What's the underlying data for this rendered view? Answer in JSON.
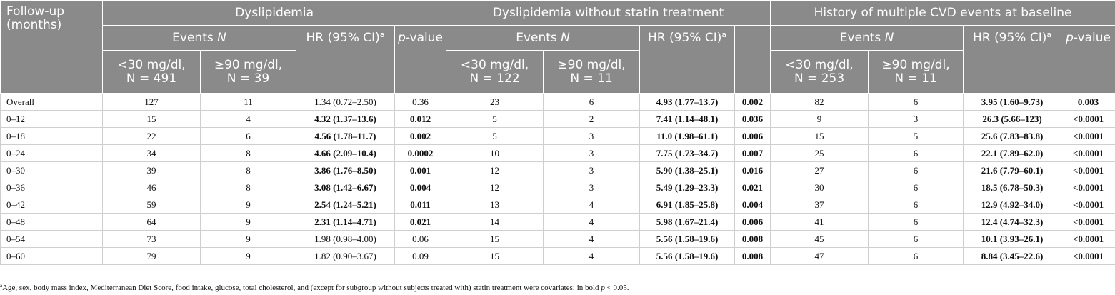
{
  "header": {
    "followup": "Follow-up (months)",
    "groups": [
      "Dyslipidemia",
      "Dyslipidemia without statin treatment",
      "History of multiple CVD events at baseline"
    ],
    "events_label": "Events ",
    "events_n": "N",
    "hr_label": "HR (95% CI)",
    "hr_sup": "a",
    "pvalue_p": "p",
    "pvalue_rest": "-value",
    "sub": {
      "g1": [
        "<30 mg/dl,",
        "N = 491",
        "≥90 mg/dl,",
        "N = 39"
      ],
      "g2": [
        "<30 mg/dl,",
        "N = 122",
        "≥90 mg/dl,",
        "N = 11"
      ],
      "g3": [
        "<30 mg/dl,",
        "N = 253",
        "≥90 mg/dl,",
        "N = 11"
      ]
    }
  },
  "rows": [
    {
      "label": "Overall",
      "c": [
        "127",
        "11",
        "1.34 (0.72–2.50)",
        "0.36",
        "23",
        "6",
        "4.93 (1.77–13.7)",
        "0.002",
        "82",
        "6",
        "3.95 (1.60–9.73)",
        "0.003"
      ],
      "bold": [
        false,
        false,
        false,
        false,
        false,
        false,
        true,
        true,
        false,
        false,
        true,
        true
      ]
    },
    {
      "label": "0–12",
      "c": [
        "15",
        "4",
        "4.32 (1.37–13.6)",
        "0.012",
        "5",
        "2",
        "7.41 (1.14–48.1)",
        "0.036",
        "9",
        "3",
        "26.3 (5.66–123)",
        "<0.0001"
      ],
      "bold": [
        false,
        false,
        true,
        true,
        false,
        false,
        true,
        true,
        false,
        false,
        true,
        true
      ]
    },
    {
      "label": "0–18",
      "c": [
        "22",
        "6",
        "4.56 (1.78–11.7)",
        "0.002",
        "5",
        "3",
        "11.0 (1.98–61.1)",
        "0.006",
        "15",
        "5",
        "25.6 (7.83–83.8)",
        "<0.0001"
      ],
      "bold": [
        false,
        false,
        true,
        true,
        false,
        false,
        true,
        true,
        false,
        false,
        true,
        true
      ]
    },
    {
      "label": "0–24",
      "c": [
        "34",
        "8",
        "4.66 (2.09–10.4)",
        "0.0002",
        "10",
        "3",
        "7.75 (1.73–34.7)",
        "0.007",
        "25",
        "6",
        "22.1 (7.89–62.0)",
        "<0.0001"
      ],
      "bold": [
        false,
        false,
        true,
        true,
        false,
        false,
        true,
        true,
        false,
        false,
        true,
        true
      ]
    },
    {
      "label": "0–30",
      "c": [
        "39",
        "8",
        "3.86 (1.76–8.50)",
        "0.001",
        "12",
        "3",
        "5.90 (1.38–25.1)",
        "0.016",
        "27",
        "6",
        "21.6 (7.79–60.1)",
        "<0.0001"
      ],
      "bold": [
        false,
        false,
        true,
        true,
        false,
        false,
        true,
        true,
        false,
        false,
        true,
        true
      ]
    },
    {
      "label": "0–36",
      "c": [
        "46",
        "8",
        "3.08 (1.42–6.67)",
        "0.004",
        "12",
        "3",
        "5.49 (1.29–23.3)",
        "0.021",
        "30",
        "6",
        "18.5 (6.78–50.3)",
        "<0.0001"
      ],
      "bold": [
        false,
        false,
        true,
        true,
        false,
        false,
        true,
        true,
        false,
        false,
        true,
        true
      ]
    },
    {
      "label": "0–42",
      "c": [
        "59",
        "9",
        "2.54 (1.24–5.21)",
        "0.011",
        "13",
        "4",
        "6.91 (1.85–25.8)",
        "0.004",
        "37",
        "6",
        "12.9 (4.92–34.0)",
        "<0.0001"
      ],
      "bold": [
        false,
        false,
        true,
        true,
        false,
        false,
        true,
        true,
        false,
        false,
        true,
        true
      ]
    },
    {
      "label": "0–48",
      "c": [
        "64",
        "9",
        "2.31 (1.14–4.71)",
        "0.021",
        "14",
        "4",
        "5.98 (1.67–21.4)",
        "0.006",
        "41",
        "6",
        "12.4 (4.74–32.3)",
        "<0.0001"
      ],
      "bold": [
        false,
        false,
        true,
        true,
        false,
        false,
        true,
        true,
        false,
        false,
        true,
        true
      ]
    },
    {
      "label": "0–54",
      "c": [
        "73",
        "9",
        "1.98 (0.98–4.00)",
        "0.06",
        "15",
        "4",
        "5.56 (1.58–19.6)",
        "0.008",
        "45",
        "6",
        "10.1 (3.93–26.1)",
        "<0.0001"
      ],
      "bold": [
        false,
        false,
        false,
        false,
        false,
        false,
        true,
        true,
        false,
        false,
        true,
        true
      ]
    },
    {
      "label": "0–60",
      "c": [
        "79",
        "9",
        "1.82 (0.90–3.67)",
        "0.09",
        "15",
        "4",
        "5.56 (1.58–19.6)",
        "0.008",
        "47",
        "6",
        "8.84 (3.45–22.6)",
        "<0.0001"
      ],
      "bold": [
        false,
        false,
        false,
        false,
        false,
        false,
        true,
        true,
        false,
        false,
        true,
        true
      ]
    }
  ],
  "footnote": {
    "sup": "a",
    "text": "Age, sex, body mass index, Mediterranean Diet Score, food intake, glucose, total cholesterol, and (except for subgroup without subjects treated with) statin treatment were covariates; in bold ",
    "p": "p",
    "tail": " < 0.05."
  }
}
